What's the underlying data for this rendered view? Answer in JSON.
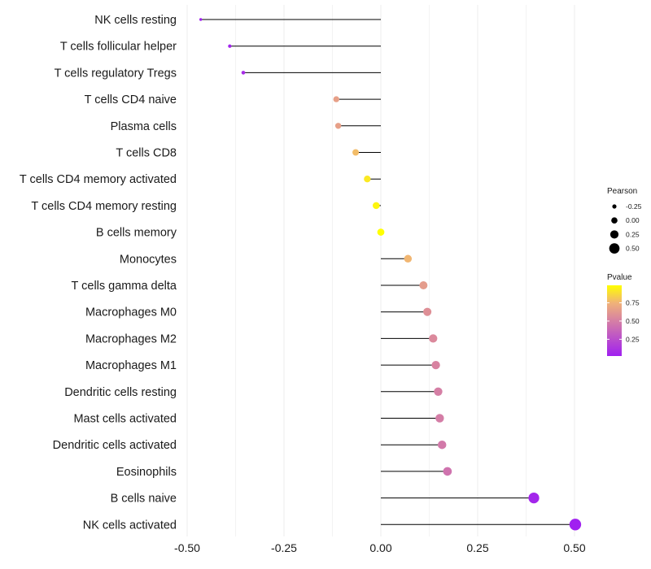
{
  "chart_data": {
    "type": "lollipop",
    "title": "",
    "xlabel": "",
    "ylabel": "",
    "xlim": [
      -0.5,
      0.5
    ],
    "x_ticks": [
      -0.5,
      -0.25,
      0.0,
      0.25,
      0.5
    ],
    "x_tick_labels": [
      "-0.50",
      "-0.25",
      "0.00",
      "0.25",
      "0.50"
    ],
    "grid": true,
    "colors": {
      "low": "#a020f0",
      "high": "#ffff00",
      "segment": "#000000",
      "grid": "#ebebeb"
    },
    "categories": [
      "NK cells resting",
      "T cells follicular helper",
      "T cells regulatory  Tregs",
      "T cells CD4 naive",
      "Plasma cells",
      "T cells CD8",
      "T cells CD4 memory activated",
      "T cells CD4 memory resting",
      "B cells memory",
      "Monocytes",
      "T cells gamma delta",
      "Macrophages M0",
      "Macrophages M2",
      "Macrophages M1",
      "Dendritic cells resting",
      "Mast cells activated",
      "Dendritic cells activated",
      "Eosinophils",
      "B cells naive",
      "NK cells activated"
    ],
    "pearson": [
      -0.465,
      -0.39,
      -0.355,
      -0.115,
      -0.11,
      -0.065,
      -0.035,
      -0.012,
      0.0,
      0.07,
      0.11,
      0.12,
      0.135,
      0.142,
      0.148,
      0.152,
      0.158,
      0.172,
      0.395,
      0.502
    ],
    "pvalue": [
      0.02,
      0.04,
      0.08,
      0.66,
      0.66,
      0.78,
      0.92,
      0.96,
      0.99,
      0.76,
      0.64,
      0.58,
      0.55,
      0.52,
      0.5,
      0.49,
      0.47,
      0.44,
      0.05,
      0.02
    ],
    "legend": {
      "size_title": "Pearson",
      "size_entries": [
        {
          "label": "-0.25",
          "value": -0.25
        },
        {
          "label": "0.00",
          "value": 0.0
        },
        {
          "label": "0.25",
          "value": 0.25
        },
        {
          "label": "0.50",
          "value": 0.5
        }
      ],
      "color_title": "Pvalue",
      "color_ticks": [
        {
          "label": "0.75",
          "value": 0.75
        },
        {
          "label": "0.50",
          "value": 0.5
        },
        {
          "label": "0.25",
          "value": 0.25
        }
      ],
      "color_range": [
        0.02,
        0.99
      ],
      "placement": "right"
    }
  }
}
